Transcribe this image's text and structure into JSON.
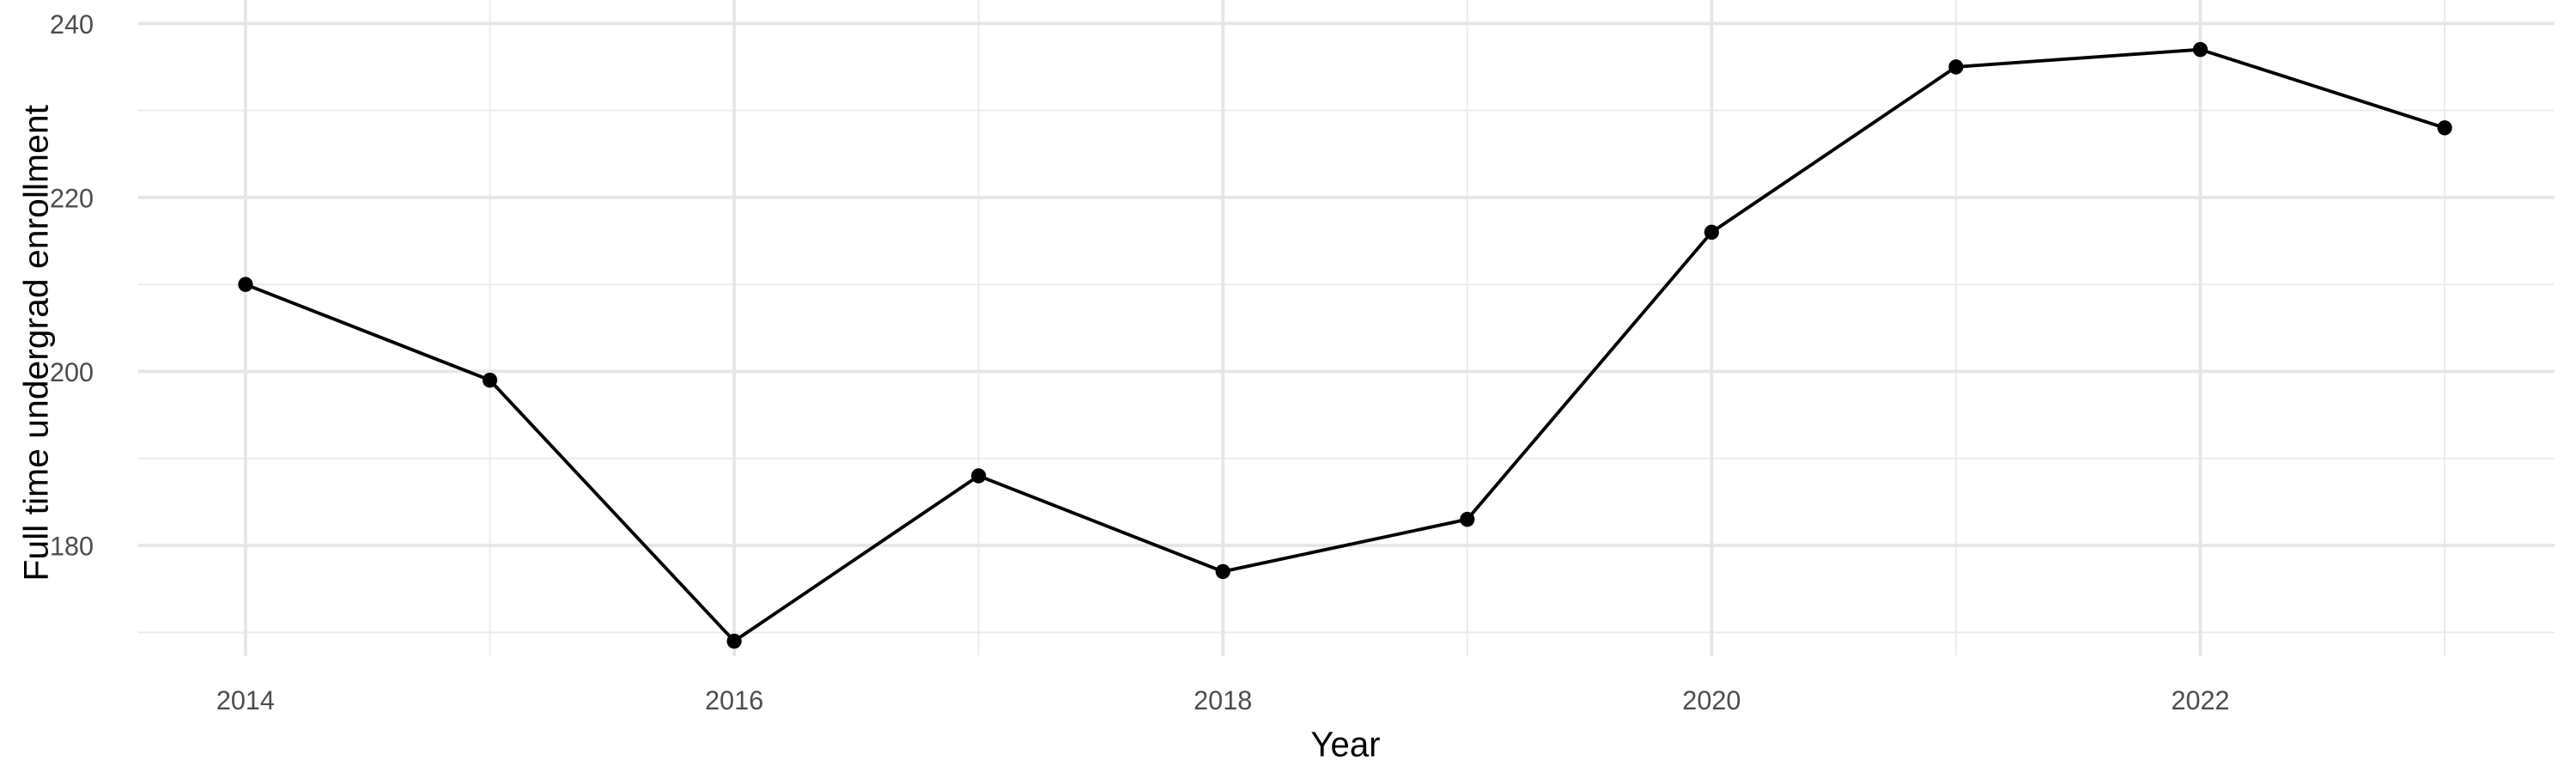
{
  "chart_data": {
    "type": "line",
    "title": "",
    "xlabel": "Year",
    "ylabel": "Full time undergrad enrollment",
    "x": [
      2014,
      2015,
      2016,
      2017,
      2018,
      2019,
      2020,
      2021,
      2022,
      2023
    ],
    "series": [
      {
        "values": [
          210,
          199,
          169,
          188,
          177,
          183,
          216,
          235,
          237,
          228
        ],
        "color": "#000000"
      }
    ],
    "xticks": [
      2014,
      2016,
      2018,
      2020,
      2022
    ],
    "xtick_labels": [
      "2014",
      "2016",
      "2018",
      "2020",
      "2022"
    ],
    "yticks": [
      180,
      200,
      220,
      240
    ],
    "ytick_labels": [
      "180",
      "200",
      "220",
      "240"
    ],
    "xlim": [
      2013.56,
      2023.45
    ],
    "ylim": [
      167.3,
      240
    ],
    "grid": true,
    "legend": "none",
    "markers": true
  }
}
